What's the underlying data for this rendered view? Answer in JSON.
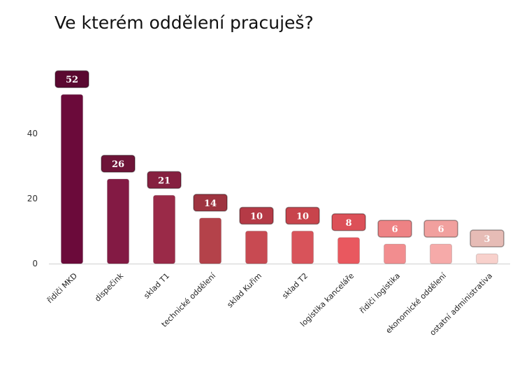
{
  "chart_data": {
    "type": "bar",
    "title": "Ve kterém oddělení pracuješ?",
    "xlabel": "",
    "ylabel": "",
    "ylim": [
      0,
      55
    ],
    "yticks": [
      0,
      20,
      40
    ],
    "grid": false,
    "categories": [
      "řidiči MKD",
      "dispečink",
      "sklad T1",
      "technické oddělení",
      "sklad Kuřim",
      "sklad T2",
      "logistika kanceláře",
      "řidiči logistika",
      "ekonomické oddělení",
      "ostatní administrativa"
    ],
    "values": [
      52,
      26,
      21,
      14,
      10,
      10,
      8,
      6,
      6,
      3
    ],
    "bar_colors": [
      "#6b0a3a",
      "#831a44",
      "#9a2a48",
      "#b4424a",
      "#c84a52",
      "#d8535a",
      "#e9585f",
      "#f28d8f",
      "#f6aaa9",
      "#f8d1cc"
    ],
    "badge_colors": [
      "#5a0830",
      "#6e1438",
      "#862040",
      "#9e3440",
      "#b53a46",
      "#c8444c",
      "#dc5058",
      "#ee8284",
      "#f1a09e",
      "#e6bcb6"
    ],
    "badge_text_colors": [
      "#ffffff",
      "#ffffff",
      "#ffffff",
      "#ffffff",
      "#ffffff",
      "#ffffff",
      "#ffffff",
      "#ffffff",
      "#ffffff",
      "#ffffff"
    ]
  }
}
